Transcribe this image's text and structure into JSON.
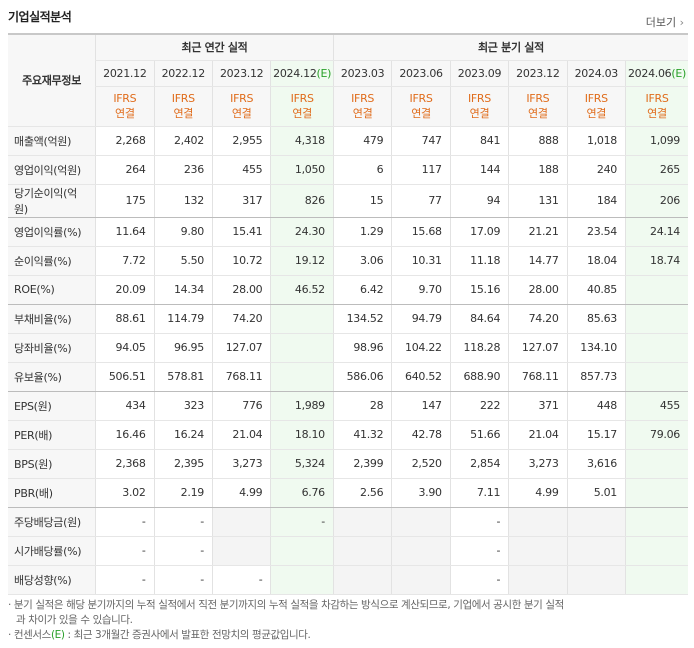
{
  "header": {
    "title": "기업실적분석",
    "more": "더보기"
  },
  "table": {
    "corner": "주요재무정보",
    "groups": [
      {
        "label": "최근 연간 실적",
        "columns": [
          {
            "period": "2021.12",
            "standard": [
              "IFRS",
              "연결"
            ]
          },
          {
            "period": "2022.12",
            "standard": [
              "IFRS",
              "연결"
            ]
          },
          {
            "period": "2023.12",
            "standard": [
              "IFRS",
              "연결"
            ]
          },
          {
            "period": "2024.12",
            "estimate": "(E)",
            "standard": [
              "IFRS",
              "연결"
            ]
          }
        ]
      },
      {
        "label": "최근 분기 실적",
        "columns": [
          {
            "period": "2023.03",
            "standard": [
              "IFRS",
              "연결"
            ]
          },
          {
            "period": "2023.06",
            "standard": [
              "IFRS",
              "연결"
            ]
          },
          {
            "period": "2023.09",
            "standard": [
              "IFRS",
              "연결"
            ]
          },
          {
            "period": "2023.12",
            "standard": [
              "IFRS",
              "연결"
            ]
          },
          {
            "period": "2024.03",
            "standard": [
              "IFRS",
              "연결"
            ]
          },
          {
            "period": "2024.06",
            "estimate": "(E)",
            "standard": [
              "IFRS",
              "연결"
            ]
          }
        ]
      }
    ],
    "sections": [
      [
        {
          "label": "매출액(억원)",
          "values": [
            "2,268",
            "2,402",
            "2,955",
            "4,318",
            "479",
            "747",
            "841",
            "888",
            "1,018",
            "1,099"
          ]
        },
        {
          "label": "영업이익(억원)",
          "values": [
            "264",
            "236",
            "455",
            "1,050",
            "6",
            "117",
            "144",
            "188",
            "240",
            "265"
          ]
        },
        {
          "label": "당기순이익(억원)",
          "values": [
            "175",
            "132",
            "317",
            "826",
            "15",
            "77",
            "94",
            "131",
            "184",
            "206"
          ]
        }
      ],
      [
        {
          "label": "영업이익률(%)",
          "values": [
            "11.64",
            "9.80",
            "15.41",
            "24.30",
            "1.29",
            "15.68",
            "17.09",
            "21.21",
            "23.54",
            "24.14"
          ]
        },
        {
          "label": "순이익률(%)",
          "values": [
            "7.72",
            "5.50",
            "10.72",
            "19.12",
            "3.06",
            "10.31",
            "11.18",
            "14.77",
            "18.04",
            "18.74"
          ]
        },
        {
          "label": "ROE(%)",
          "values": [
            "20.09",
            "14.34",
            "28.00",
            "46.52",
            "6.42",
            "9.70",
            "15.16",
            "28.00",
            "40.85",
            null
          ]
        }
      ],
      [
        {
          "label": "부채비율(%)",
          "values": [
            "88.61",
            "114.79",
            "74.20",
            null,
            "134.52",
            "94.79",
            "84.64",
            "74.20",
            "85.63",
            null
          ]
        },
        {
          "label": "당좌비율(%)",
          "values": [
            "94.05",
            "96.95",
            "127.07",
            null,
            "98.96",
            "104.22",
            "118.28",
            "127.07",
            "134.10",
            null
          ]
        },
        {
          "label": "유보율(%)",
          "values": [
            "506.51",
            "578.81",
            "768.11",
            null,
            "586.06",
            "640.52",
            "688.90",
            "768.11",
            "857.73",
            null
          ]
        }
      ],
      [
        {
          "label": "EPS(원)",
          "values": [
            "434",
            "323",
            "776",
            "1,989",
            "28",
            "147",
            "222",
            "371",
            "448",
            "455"
          ]
        },
        {
          "label": "PER(배)",
          "values": [
            "16.46",
            "16.24",
            "21.04",
            "18.10",
            "41.32",
            "42.78",
            "51.66",
            "21.04",
            "15.17",
            "79.06"
          ]
        },
        {
          "label": "BPS(원)",
          "values": [
            "2,368",
            "2,395",
            "3,273",
            "5,324",
            "2,399",
            "2,520",
            "2,854",
            "3,273",
            "3,616",
            null
          ]
        },
        {
          "label": "PBR(배)",
          "values": [
            "3.02",
            "2.19",
            "4.99",
            "6.76",
            "2.56",
            "3.90",
            "7.11",
            "4.99",
            "5.01",
            null
          ]
        }
      ],
      [
        {
          "label": "주당배당금(원)",
          "values": [
            "-",
            "-",
            null,
            "-",
            null,
            null,
            "-",
            null,
            null,
            null
          ]
        },
        {
          "label": "시가배당률(%)",
          "values": [
            "-",
            "-",
            null,
            null,
            null,
            null,
            "-",
            null,
            null,
            null
          ]
        },
        {
          "label": "배당성향(%)",
          "values": [
            "-",
            "-",
            "-",
            null,
            null,
            null,
            "-",
            null,
            null,
            null
          ]
        }
      ]
    ]
  },
  "notes": [
    {
      "text": "분기 실적은 해당 분기까지의 누적 실적에서 직전 분기까지의 누적 실적을 차감하는 방식으로 계산되므로, 기업에서 공시한 분기 실적과 차이가 있을 수 있습니다."
    },
    {
      "term": "컨센서스",
      "mark": "(E)",
      "text": " : 최근 3개월간 증권사에서 발표한 전망치의 평균값입니다."
    }
  ]
}
